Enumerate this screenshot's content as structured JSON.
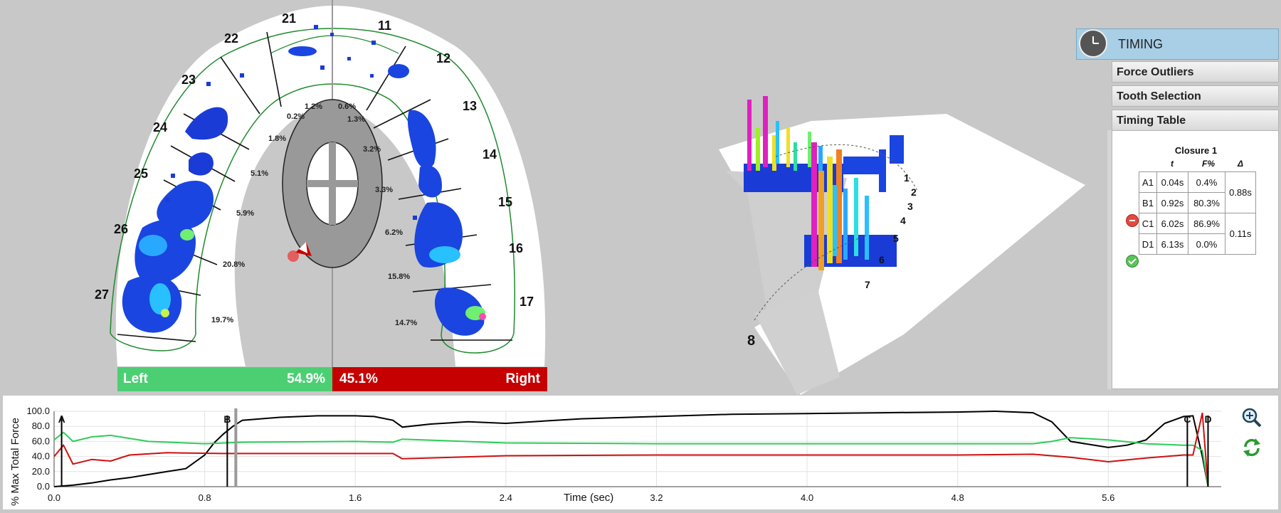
{
  "arch": {
    "tooth_numbers": [
      "21",
      "11",
      "22",
      "12",
      "23",
      "13",
      "24",
      "14",
      "25",
      "15",
      "26",
      "16",
      "27",
      "17"
    ],
    "percentages": [
      "1.2%",
      "0.6%",
      "0.2%",
      "1.3%",
      "1.8%",
      "3.2%",
      "5.1%",
      "3.3%",
      "5.9%",
      "6.2%",
      "20.8%",
      "15.8%",
      "19.7%",
      "14.7%"
    ],
    "left_label": "Left",
    "left_value": "54.9%",
    "right_value": "45.1%",
    "right_label": "Right"
  },
  "view3d": {
    "tooth_labels": [
      "1",
      "2",
      "3",
      "4",
      "5",
      "6",
      "7",
      "8"
    ]
  },
  "timing_panel": {
    "title": "TIMING",
    "icon": "clock-icon",
    "sections": [
      "Force Outliers",
      "Tooth Selection",
      "Timing Table"
    ],
    "table": {
      "closure_title": "Closure 1",
      "headers": [
        "t",
        "F%",
        "Δ"
      ],
      "rows": [
        {
          "id": "A1",
          "t": "0.04s",
          "f": "0.4%"
        },
        {
          "id": "B1",
          "t": "0.92s",
          "f": "80.3%"
        },
        {
          "id": "C1",
          "t": "6.02s",
          "f": "86.9%"
        },
        {
          "id": "D1",
          "t": "6.13s",
          "f": "0.0%"
        }
      ],
      "deltas": [
        "0.88s",
        "0.11s"
      ],
      "status_icons": [
        "minus-circle-icon",
        "check-circle-icon"
      ]
    }
  },
  "chart_data": {
    "type": "line",
    "ylabel": "% Max Total Force",
    "xlabel": "Time (sec)",
    "xlim": [
      0,
      6.2
    ],
    "ylim": [
      0,
      100
    ],
    "x_ticks": [
      "0.0",
      "0.8",
      "1.6",
      "2.4",
      "3.2",
      "4.0",
      "4.8",
      "5.6"
    ],
    "y_ticks": [
      "100.0",
      "80.0",
      "60.0",
      "40.0",
      "20.0",
      "0.0"
    ],
    "grid": true,
    "markers": [
      {
        "label": "A",
        "x": 0.04
      },
      {
        "label": "B",
        "x": 0.92
      },
      {
        "label": "C",
        "x": 6.02
      },
      {
        "label": "D",
        "x": 6.13
      }
    ],
    "series": [
      {
        "color": "#000000",
        "x": [
          0,
          0.1,
          0.2,
          0.3,
          0.4,
          0.5,
          0.6,
          0.7,
          0.8,
          0.85,
          0.9,
          0.95,
          1.0,
          1.2,
          1.4,
          1.6,
          1.7,
          1.8,
          1.85,
          2.0,
          2.2,
          2.4,
          2.6,
          2.8,
          3.2,
          3.6,
          4.0,
          4.4,
          4.8,
          5.0,
          5.2,
          5.3,
          5.4,
          5.5,
          5.6,
          5.7,
          5.8,
          5.9,
          6.0,
          6.05,
          6.1,
          6.13
        ],
        "values": [
          0,
          2,
          5,
          9,
          12,
          16,
          20,
          24,
          42,
          58,
          70,
          80,
          88,
          92,
          94,
          94,
          93,
          88,
          79,
          83,
          86,
          84,
          87,
          90,
          93,
          96,
          97,
          98,
          99,
          100,
          98,
          86,
          60,
          56,
          52,
          55,
          62,
          84,
          93,
          94,
          40,
          0
        ]
      },
      {
        "color": "#2ecc5a",
        "x": [
          0,
          0.05,
          0.1,
          0.2,
          0.3,
          0.5,
          0.8,
          1.0,
          1.6,
          1.8,
          1.85,
          2.4,
          3.2,
          4.0,
          4.8,
          5.2,
          5.3,
          5.4,
          5.6,
          5.8,
          6.0,
          6.05,
          6.1,
          6.13
        ],
        "values": [
          62,
          72,
          60,
          66,
          68,
          60,
          57,
          59,
          60,
          59,
          63,
          58,
          57,
          57,
          57,
          57,
          60,
          65,
          62,
          57,
          55,
          55,
          48,
          0
        ]
      },
      {
        "color": "#d01010",
        "x": [
          0,
          0.05,
          0.1,
          0.2,
          0.3,
          0.4,
          0.6,
          0.9,
          1.6,
          1.8,
          1.85,
          2.4,
          3.2,
          4.0,
          4.8,
          5.2,
          5.4,
          5.6,
          5.8,
          6.0,
          6.05,
          6.1,
          6.13
        ],
        "values": [
          40,
          55,
          30,
          36,
          34,
          42,
          45,
          44,
          44,
          44,
          37,
          41,
          42,
          42,
          42,
          43,
          39,
          33,
          38,
          42,
          42,
          98,
          0
        ]
      }
    ]
  },
  "toolbar": {
    "zoom_icon": "zoom-in-icon",
    "refresh_icon": "refresh-icon"
  }
}
